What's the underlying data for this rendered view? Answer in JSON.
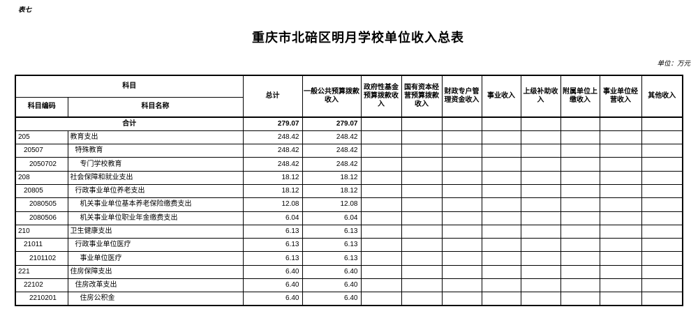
{
  "page": {
    "table_label": "表七",
    "title": "重庆市北碚区明月学校单位收入总表",
    "unit_note": "单位：万元"
  },
  "table": {
    "header": {
      "subject_group": "科目",
      "code": "科目编码",
      "name": "科目名称",
      "value_columns": [
        "总计",
        "一般公共预算拨款收入",
        "政府性基金预算拨款收入",
        "国有资本经营预算拨款收入",
        "财政专户管理资金收入",
        "事业收入",
        "上级补助收入",
        "附属单位上缴收入",
        "事业单位经营收入",
        "其他收入"
      ]
    },
    "total_row": {
      "name": "合计",
      "values": [
        "279.07",
        "279.07",
        "",
        "",
        "",
        "",
        "",
        "",
        "",
        ""
      ]
    },
    "rows": [
      {
        "code": "205",
        "name": "教育支出",
        "level": 0,
        "values": [
          "248.42",
          "248.42",
          "",
          "",
          "",
          "",
          "",
          "",
          "",
          ""
        ]
      },
      {
        "code": "20507",
        "name": "特殊教育",
        "level": 1,
        "values": [
          "248.42",
          "248.42",
          "",
          "",
          "",
          "",
          "",
          "",
          "",
          ""
        ]
      },
      {
        "code": "2050702",
        "name": "专门学校教育",
        "level": 2,
        "values": [
          "248.42",
          "248.42",
          "",
          "",
          "",
          "",
          "",
          "",
          "",
          ""
        ]
      },
      {
        "code": "208",
        "name": "社会保障和就业支出",
        "level": 0,
        "values": [
          "18.12",
          "18.12",
          "",
          "",
          "",
          "",
          "",
          "",
          "",
          ""
        ]
      },
      {
        "code": "20805",
        "name": "行政事业单位养老支出",
        "level": 1,
        "values": [
          "18.12",
          "18.12",
          "",
          "",
          "",
          "",
          "",
          "",
          "",
          ""
        ]
      },
      {
        "code": "2080505",
        "name": "机关事业单位基本养老保险缴费支出",
        "level": 2,
        "values": [
          "12.08",
          "12.08",
          "",
          "",
          "",
          "",
          "",
          "",
          "",
          ""
        ]
      },
      {
        "code": "2080506",
        "name": "机关事业单位职业年金缴费支出",
        "level": 2,
        "values": [
          "6.04",
          "6.04",
          "",
          "",
          "",
          "",
          "",
          "",
          "",
          ""
        ]
      },
      {
        "code": "210",
        "name": "卫生健康支出",
        "level": 0,
        "values": [
          "6.13",
          "6.13",
          "",
          "",
          "",
          "",
          "",
          "",
          "",
          ""
        ]
      },
      {
        "code": "21011",
        "name": "行政事业单位医疗",
        "level": 1,
        "values": [
          "6.13",
          "6.13",
          "",
          "",
          "",
          "",
          "",
          "",
          "",
          ""
        ]
      },
      {
        "code": "2101102",
        "name": "事业单位医疗",
        "level": 2,
        "values": [
          "6.13",
          "6.13",
          "",
          "",
          "",
          "",
          "",
          "",
          "",
          ""
        ]
      },
      {
        "code": "221",
        "name": "住房保障支出",
        "level": 0,
        "values": [
          "6.40",
          "6.40",
          "",
          "",
          "",
          "",
          "",
          "",
          "",
          ""
        ]
      },
      {
        "code": "22102",
        "name": "住房改革支出",
        "level": 1,
        "values": [
          "6.40",
          "6.40",
          "",
          "",
          "",
          "",
          "",
          "",
          "",
          ""
        ]
      },
      {
        "code": "2210201",
        "name": "住房公积金",
        "level": 2,
        "values": [
          "6.40",
          "6.40",
          "",
          "",
          "",
          "",
          "",
          "",
          "",
          ""
        ]
      }
    ]
  }
}
